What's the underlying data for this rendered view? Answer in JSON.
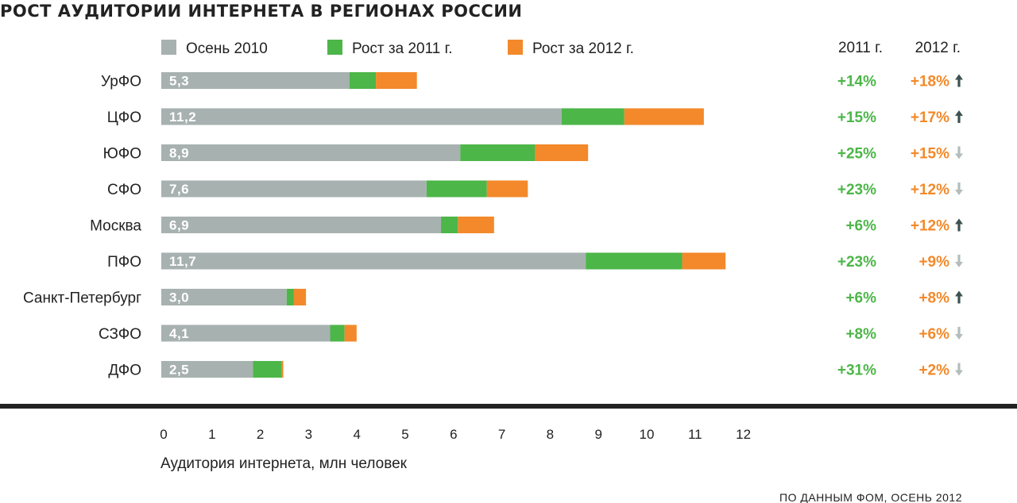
{
  "chart_data": {
    "type": "bar",
    "stacked": true,
    "orientation": "horizontal",
    "title": "РОСТ АУДИТОРИИ ИНТЕРНЕТА В РЕГИОНАХ РОССИИ",
    "xlabel": "Аудитория интернета, млн человек",
    "xlim": [
      0,
      12
    ],
    "xticks": [
      "0",
      "1",
      "2",
      "3",
      "4",
      "5",
      "6",
      "7",
      "8",
      "9",
      "10",
      "11",
      "12"
    ],
    "legend_position": "top",
    "source": "ПО ДАННЫМ ФОМ, ОСЕНЬ 2012",
    "categories": [
      "УрФО",
      "ЦФО",
      "ЮФО",
      "СФО",
      "Москва",
      "ПФО",
      "Санкт-Петербург",
      "СЗФО",
      "ДФО"
    ],
    "value_labels": [
      "5,3",
      "11,2",
      "8,9",
      "7,6",
      "6,9",
      "11,7",
      "3,0",
      "4,1",
      "2,5"
    ],
    "series": [
      {
        "name": "Осень 2010",
        "color": "#a7b1b0",
        "values": [
          3.9,
          8.3,
          6.2,
          5.5,
          5.8,
          8.8,
          2.6,
          3.5,
          1.9
        ]
      },
      {
        "name": "Рост за 2011 г.",
        "color": "#4cb648",
        "values": [
          0.55,
          1.3,
          1.55,
          1.25,
          0.35,
          2.0,
          0.15,
          0.3,
          0.6
        ]
      },
      {
        "name": "Рост за 2012 г.",
        "color": "#f3892a",
        "values": [
          0.85,
          1.65,
          1.1,
          0.85,
          0.75,
          0.9,
          0.25,
          0.25,
          0.03
        ]
      }
    ],
    "column_headers": [
      "2011 г.",
      "2012 г."
    ],
    "growth_2011": [
      "+14%",
      "+15%",
      "+25%",
      "+23%",
      "+6%",
      "+23%",
      "+6%",
      "+8%",
      "+31%"
    ],
    "growth_2012": [
      "+18%",
      "+17%",
      "+15%",
      "+12%",
      "+12%",
      "+9%",
      "+8%",
      "+6%",
      "+2%"
    ],
    "trend_2012": [
      "up",
      "up",
      "down",
      "down",
      "up",
      "down",
      "up",
      "down",
      "down"
    ],
    "colors": {
      "up_arrow": "#3d5250",
      "down_arrow": "#b3bdbc",
      "axis_rule": "#222222"
    }
  }
}
